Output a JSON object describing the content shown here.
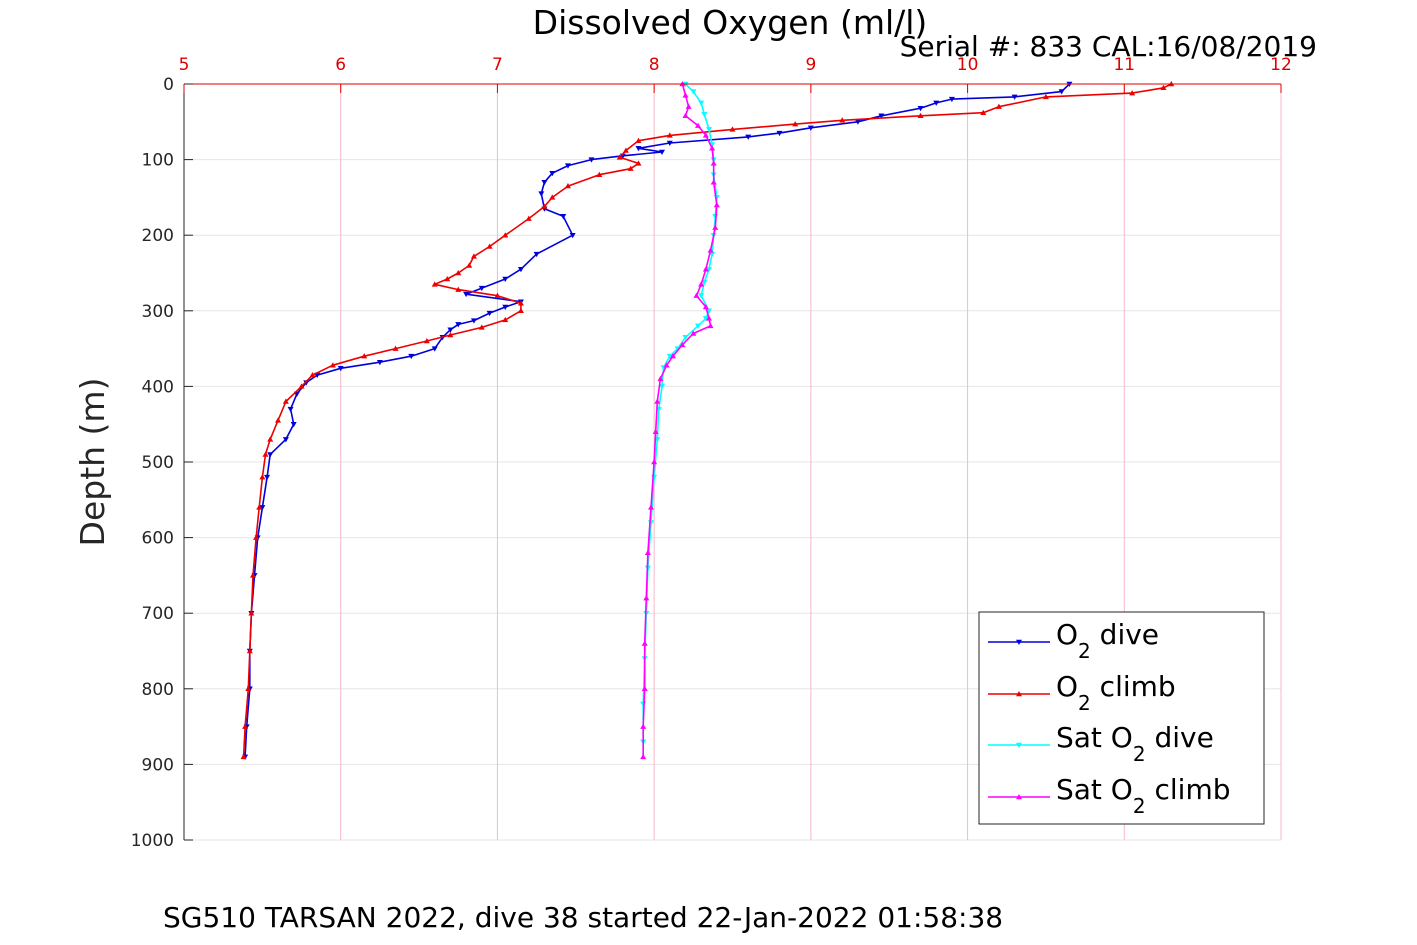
{
  "chart_data": {
    "type": "line",
    "title": "Dissolved Oxygen (ml/l)",
    "subtitle": "Serial #: 833  CAL:16/08/2019",
    "footer": "SG510 TARSAN 2022, dive 38 started 22-Jan-2022 01:58:38",
    "xlabel": "",
    "ylabel": "Depth (m)",
    "xlim": [
      5,
      12
    ],
    "ylim": [
      0,
      1000
    ],
    "y_reversed": true,
    "x_axis_position": "top",
    "x_ticks": [
      "5",
      "6",
      "7",
      "8",
      "9",
      "10",
      "11",
      "12"
    ],
    "y_ticks": [
      "0",
      "100",
      "200",
      "300",
      "400",
      "500",
      "600",
      "700",
      "800",
      "900",
      "1000"
    ],
    "grid": true,
    "legend_position": "bottom-right",
    "colors": {
      "title": "#ff0000",
      "x_ticks": "#e00000",
      "grid": "#e6e6e6",
      "x_grid": "#f5b8c6"
    },
    "series": [
      {
        "name": "O2 dive",
        "legend_main": "O",
        "legend_sub": "2",
        "legend_rest": " dive",
        "color": "#0000dd",
        "marker": "triangle-down",
        "points": [
          [
            10.65,
            0
          ],
          [
            10.6,
            10
          ],
          [
            10.3,
            17
          ],
          [
            9.9,
            20
          ],
          [
            9.8,
            25
          ],
          [
            9.7,
            32
          ],
          [
            9.45,
            42
          ],
          [
            9.3,
            50
          ],
          [
            9.0,
            58
          ],
          [
            8.8,
            65
          ],
          [
            8.6,
            70
          ],
          [
            8.1,
            78
          ],
          [
            7.9,
            85
          ],
          [
            8.05,
            90
          ],
          [
            7.8,
            95
          ],
          [
            7.6,
            100
          ],
          [
            7.45,
            108
          ],
          [
            7.35,
            118
          ],
          [
            7.3,
            130
          ],
          [
            7.28,
            145
          ],
          [
            7.3,
            165
          ],
          [
            7.42,
            175
          ],
          [
            7.48,
            200
          ],
          [
            7.25,
            225
          ],
          [
            7.15,
            245
          ],
          [
            7.05,
            258
          ],
          [
            6.9,
            270
          ],
          [
            6.8,
            278
          ],
          [
            7.15,
            288
          ],
          [
            7.05,
            295
          ],
          [
            6.95,
            303
          ],
          [
            6.85,
            313
          ],
          [
            6.75,
            318
          ],
          [
            6.7,
            325
          ],
          [
            6.65,
            335
          ],
          [
            6.6,
            350
          ],
          [
            6.45,
            360
          ],
          [
            6.25,
            368
          ],
          [
            6.0,
            376
          ],
          [
            5.85,
            385
          ],
          [
            5.78,
            395
          ],
          [
            5.72,
            410
          ],
          [
            5.68,
            430
          ],
          [
            5.7,
            450
          ],
          [
            5.65,
            470
          ],
          [
            5.55,
            490
          ],
          [
            5.53,
            520
          ],
          [
            5.5,
            560
          ],
          [
            5.47,
            600
          ],
          [
            5.45,
            650
          ],
          [
            5.43,
            700
          ],
          [
            5.42,
            750
          ],
          [
            5.42,
            800
          ],
          [
            5.4,
            850
          ],
          [
            5.39,
            890
          ]
        ]
      },
      {
        "name": "O2 climb",
        "legend_main": "O",
        "legend_sub": "2",
        "legend_rest": " climb",
        "color": "#ee0000",
        "marker": "triangle-up",
        "points": [
          [
            11.3,
            0
          ],
          [
            11.25,
            5
          ],
          [
            11.05,
            12
          ],
          [
            10.5,
            17
          ],
          [
            10.2,
            30
          ],
          [
            10.1,
            38
          ],
          [
            9.7,
            42
          ],
          [
            9.2,
            48
          ],
          [
            8.9,
            53
          ],
          [
            8.5,
            60
          ],
          [
            8.1,
            68
          ],
          [
            7.9,
            75
          ],
          [
            7.82,
            88
          ],
          [
            7.78,
            97
          ],
          [
            7.9,
            105
          ],
          [
            7.85,
            112
          ],
          [
            7.65,
            120
          ],
          [
            7.45,
            135
          ],
          [
            7.35,
            150
          ],
          [
            7.3,
            162
          ],
          [
            7.2,
            178
          ],
          [
            7.05,
            200
          ],
          [
            6.95,
            215
          ],
          [
            6.85,
            228
          ],
          [
            6.82,
            240
          ],
          [
            6.75,
            250
          ],
          [
            6.68,
            258
          ],
          [
            6.6,
            265
          ],
          [
            6.75,
            272
          ],
          [
            7.0,
            280
          ],
          [
            7.15,
            290
          ],
          [
            7.15,
            300
          ],
          [
            7.05,
            312
          ],
          [
            6.9,
            322
          ],
          [
            6.7,
            332
          ],
          [
            6.55,
            340
          ],
          [
            6.35,
            350
          ],
          [
            6.15,
            360
          ],
          [
            5.95,
            372
          ],
          [
            5.82,
            385
          ],
          [
            5.75,
            400
          ],
          [
            5.65,
            420
          ],
          [
            5.6,
            445
          ],
          [
            5.55,
            470
          ],
          [
            5.52,
            490
          ],
          [
            5.5,
            520
          ],
          [
            5.48,
            560
          ],
          [
            5.46,
            600
          ],
          [
            5.44,
            650
          ],
          [
            5.43,
            700
          ],
          [
            5.42,
            750
          ],
          [
            5.41,
            800
          ],
          [
            5.39,
            850
          ],
          [
            5.38,
            890
          ]
        ]
      },
      {
        "name": "Sat O2 dive",
        "legend_main": "Sat O",
        "legend_sub": "2",
        "legend_rest": " dive",
        "color": "#00ffff",
        "marker": "triangle-down",
        "points": [
          [
            8.2,
            0
          ],
          [
            8.25,
            10
          ],
          [
            8.3,
            25
          ],
          [
            8.32,
            40
          ],
          [
            8.35,
            60
          ],
          [
            8.37,
            80
          ],
          [
            8.38,
            100
          ],
          [
            8.38,
            120
          ],
          [
            8.4,
            150
          ],
          [
            8.39,
            175
          ],
          [
            8.38,
            200
          ],
          [
            8.37,
            225
          ],
          [
            8.35,
            245
          ],
          [
            8.32,
            262
          ],
          [
            8.3,
            280
          ],
          [
            8.35,
            300
          ],
          [
            8.33,
            310
          ],
          [
            8.28,
            320
          ],
          [
            8.2,
            335
          ],
          [
            8.15,
            350
          ],
          [
            8.1,
            360
          ],
          [
            8.06,
            375
          ],
          [
            8.05,
            400
          ],
          [
            8.03,
            430
          ],
          [
            8.02,
            470
          ],
          [
            8.0,
            520
          ],
          [
            7.98,
            580
          ],
          [
            7.96,
            640
          ],
          [
            7.95,
            700
          ],
          [
            7.94,
            760
          ],
          [
            7.93,
            820
          ],
          [
            7.93,
            870
          ]
        ]
      },
      {
        "name": "Sat O2 climb",
        "legend_main": "Sat O",
        "legend_sub": "2",
        "legend_rest": " climb",
        "color": "#ff00ff",
        "marker": "triangle-up",
        "points": [
          [
            8.18,
            0
          ],
          [
            8.2,
            15
          ],
          [
            8.22,
            30
          ],
          [
            8.2,
            42
          ],
          [
            8.28,
            55
          ],
          [
            8.33,
            68
          ],
          [
            8.37,
            85
          ],
          [
            8.38,
            105
          ],
          [
            8.38,
            130
          ],
          [
            8.4,
            160
          ],
          [
            8.39,
            190
          ],
          [
            8.36,
            220
          ],
          [
            8.33,
            245
          ],
          [
            8.3,
            265
          ],
          [
            8.27,
            280
          ],
          [
            8.33,
            295
          ],
          [
            8.35,
            310
          ],
          [
            8.36,
            320
          ],
          [
            8.25,
            330
          ],
          [
            8.18,
            345
          ],
          [
            8.12,
            360
          ],
          [
            8.08,
            372
          ],
          [
            8.04,
            390
          ],
          [
            8.02,
            420
          ],
          [
            8.01,
            460
          ],
          [
            8.0,
            500
          ],
          [
            7.98,
            560
          ],
          [
            7.96,
            620
          ],
          [
            7.95,
            680
          ],
          [
            7.94,
            740
          ],
          [
            7.94,
            800
          ],
          [
            7.93,
            850
          ],
          [
            7.93,
            890
          ]
        ]
      }
    ]
  }
}
